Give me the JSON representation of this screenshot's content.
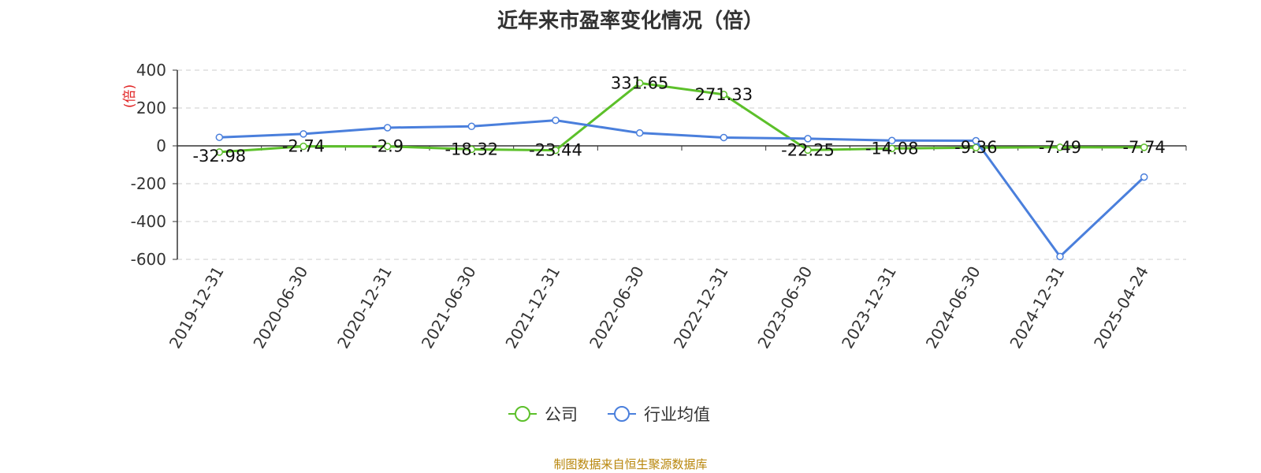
{
  "title": "近年来市盈率变化情况（倍）",
  "source": "制图数据来自恒生聚源数据库",
  "chart_data": {
    "type": "line",
    "ylabel": "(倍)",
    "ylim": [
      -600,
      400
    ],
    "yticks": [
      400,
      200,
      0,
      -200,
      -400,
      -600
    ],
    "grid": true,
    "legend_position": "bottom-center",
    "categories": [
      "2019-12-31",
      "2020-06-30",
      "2020-12-31",
      "2021-06-30",
      "2021-12-31",
      "2022-06-30",
      "2022-12-31",
      "2023-06-30",
      "2023-12-31",
      "2024-06-30",
      "2024-12-31",
      "2025-04-24"
    ],
    "series": [
      {
        "name": "公司",
        "color": "#5cc02a",
        "values": [
          -32.98,
          -2.74,
          -2.9,
          -18.32,
          -23.44,
          331.65,
          271.33,
          -22.25,
          -14.08,
          -9.36,
          -7.49,
          -7.74
        ],
        "labels": [
          "-32.98",
          "-2.74",
          "-2.9",
          "-18.32",
          "-23.44",
          "331.65",
          "271.33",
          "-22.25",
          "-14.08",
          "-9.36",
          "-7.49",
          "-7.74"
        ]
      },
      {
        "name": "行业均值",
        "color": "#4a7fdc",
        "values": [
          45,
          63,
          96,
          103,
          135,
          68,
          44,
          38,
          28,
          27,
          -585,
          -165
        ]
      }
    ]
  }
}
